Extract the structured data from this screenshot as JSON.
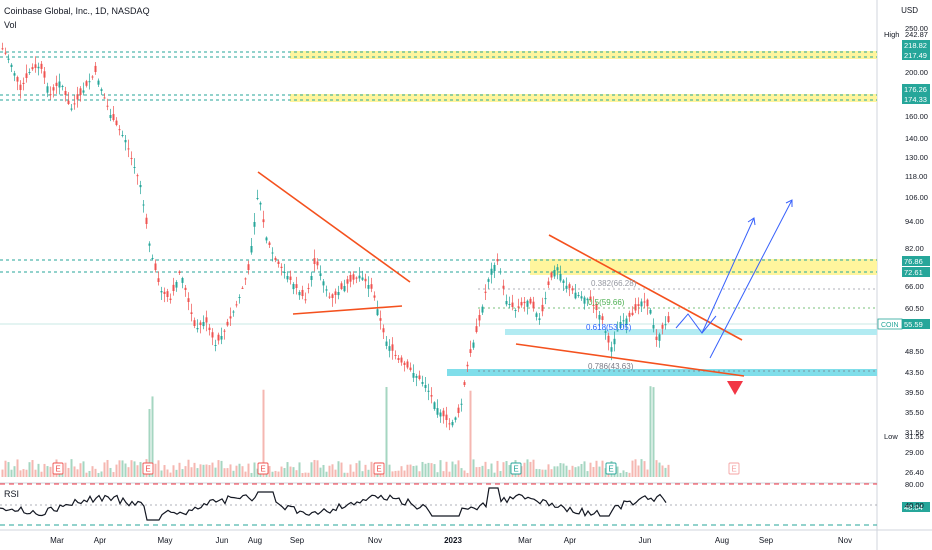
{
  "header": {
    "title": "Coinbase Global, Inc., 1D, NASDAQ",
    "volume_label": "Vol",
    "rsi_label": "RSI",
    "currency": "USD"
  },
  "chart_data": {
    "type": "candlestick",
    "symbol": "COIN",
    "price_axis_ticks": [
      "250.00",
      "230.00",
      "200.00",
      "180.00",
      "160.00",
      "140.00",
      "130.00",
      "118.00",
      "106.00",
      "94.00",
      "82.00",
      "72.00",
      "66.00",
      "60.50",
      "55.00",
      "48.50",
      "43.50",
      "39.50",
      "35.50",
      "31.50",
      "29.00",
      "26.40"
    ],
    "price_axis_values": [
      250,
      230,
      200,
      180,
      160,
      140,
      130,
      118,
      106,
      94,
      82,
      72,
      66,
      60.5,
      55,
      48.5,
      43.5,
      39.5,
      35.5,
      31.5,
      29,
      26.4
    ],
    "rsi_axis_ticks": [
      "80.00",
      "40.00"
    ],
    "time_axis_labels": [
      "Mar",
      "Apr",
      "May",
      "Jun",
      "Aug",
      "Sep",
      "Nov",
      "2023",
      "Mar",
      "Apr",
      "Jun",
      "Aug",
      "Sep",
      "Nov"
    ],
    "price_tags": [
      {
        "label": "High",
        "value": "242.87",
        "kind": "plain"
      },
      {
        "label": "",
        "value": "218.82",
        "kind": "green"
      },
      {
        "label": "",
        "value": "217.49",
        "kind": "green"
      },
      {
        "label": "",
        "value": "176.26",
        "kind": "green"
      },
      {
        "label": "",
        "value": "174.33",
        "kind": "green"
      },
      {
        "label": "",
        "value": "76.86",
        "kind": "green"
      },
      {
        "label": "",
        "value": "72.61",
        "kind": "green"
      },
      {
        "label": "COIN",
        "value": "55.59",
        "kind": "cyan"
      },
      {
        "label": "Low",
        "value": "31.55",
        "kind": "plain"
      },
      {
        "label": "",
        "value": "48.04",
        "kind": "green"
      }
    ],
    "fib_labels": [
      {
        "text": "0.382(66.28)",
        "color": "#9598a1"
      },
      {
        "text": "0.5(59.66)",
        "color": "#4caf50"
      },
      {
        "text": "0.618(53.05)",
        "color": "#2962ff"
      },
      {
        "text": "0.786(43.63)",
        "color": "#787b86"
      }
    ],
    "earnings_marker": "E",
    "colors": {
      "up": "#26a69a",
      "down": "#ef5350",
      "trendline": "#f4511e",
      "projection": "#3861fb",
      "zone_yellow": "#fff59d",
      "zone_cyan": "#80deea",
      "dashed_green": "#26a69a",
      "rsi_line": "#131722",
      "rsi_red": "#f23645"
    }
  }
}
